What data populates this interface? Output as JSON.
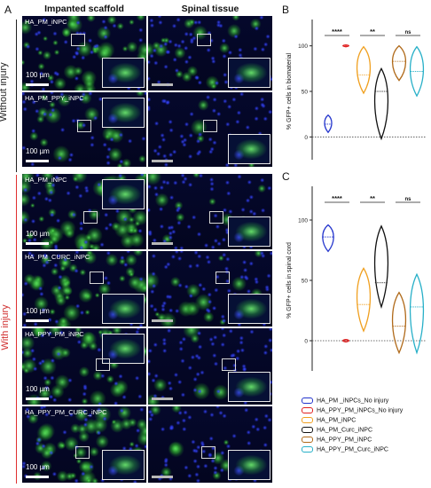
{
  "panel_letters": {
    "a": "A",
    "b": "B",
    "c": "C"
  },
  "columns": {
    "left": "Impanted scaffold",
    "right": "Spinal tissue"
  },
  "groups": {
    "top": "Without injury",
    "bottom": "With injury"
  },
  "scale_label": "100 µm",
  "rows": [
    {
      "label": "HA_PM_iNPC"
    },
    {
      "label": "HA_PM_PPY_iNPC"
    },
    {
      "label": "HA_PM_iNPC"
    },
    {
      "label": "HA_PM_CURC_iNPC"
    },
    {
      "label": "HA_PPY_PM_iNPC"
    },
    {
      "label": "HA_PPY_PM_CURC_iNPC"
    }
  ],
  "colors": {
    "blue": "#2233cc",
    "red": "#e02020",
    "orange": "#f0a020",
    "black": "#111111",
    "brown": "#b06a1a",
    "cyan": "#28b0c8"
  },
  "legend": [
    {
      "label": "HA_PM _iNPCs_No injury",
      "color": "#2233cc"
    },
    {
      "label": "HA_PPY_PM_iNPCs_No injury",
      "color": "#e02020"
    },
    {
      "label": "HA_PM_iNPC",
      "color": "#f0a020"
    },
    {
      "label": "HA_PM_Curc_iNPC",
      "color": "#111111"
    },
    {
      "label": "HA_PPY_PM_iNPC",
      "color": "#b06a1a"
    },
    {
      "label": "HA_PPY_PM_Curc_iNPC",
      "color": "#28b0c8"
    }
  ],
  "chart_data": [
    {
      "type": "violin",
      "ylabel": "% GFP+ cells in biomaterial",
      "ylim": [
        -25,
        125
      ],
      "yticks": [
        -50,
        0,
        50,
        100
      ],
      "reference_line": 0,
      "series": [
        {
          "color": "#2233cc",
          "median": 14,
          "range": [
            5,
            24
          ]
        },
        {
          "color": "#e02020",
          "median": 100,
          "range": [
            99,
            101
          ]
        },
        {
          "color": "#f0a020",
          "median": 68,
          "range": [
            48,
            99
          ]
        },
        {
          "color": "#111111",
          "median": 50,
          "range": [
            -2,
            75
          ]
        },
        {
          "color": "#b06a1a",
          "median": 83,
          "range": [
            62,
            100
          ]
        },
        {
          "color": "#28b0c8",
          "median": 72,
          "range": [
            45,
            99
          ]
        }
      ],
      "significance": [
        {
          "pair": [
            1,
            2
          ],
          "label": "****"
        },
        {
          "pair": [
            3,
            4
          ],
          "label": "**"
        },
        {
          "pair": [
            5,
            6
          ],
          "label": "ns"
        }
      ]
    },
    {
      "type": "violin",
      "ylabel": "% GFP+ cells in spinal cord",
      "ylim": [
        -25,
        125
      ],
      "yticks": [
        -50,
        0,
        50,
        100
      ],
      "reference_line": 0,
      "series": [
        {
          "color": "#2233cc",
          "median": 86,
          "range": [
            74,
            96
          ]
        },
        {
          "color": "#e02020",
          "median": 0,
          "range": [
            -1,
            1
          ]
        },
        {
          "color": "#f0a020",
          "median": 30,
          "range": [
            8,
            60
          ]
        },
        {
          "color": "#111111",
          "median": 48,
          "range": [
            28,
            95
          ]
        },
        {
          "color": "#b06a1a",
          "median": 12,
          "range": [
            -10,
            40
          ]
        },
        {
          "color": "#28b0c8",
          "median": 28,
          "range": [
            -10,
            55
          ]
        }
      ],
      "significance": [
        {
          "pair": [
            1,
            2
          ],
          "label": "****"
        },
        {
          "pair": [
            3,
            4
          ],
          "label": "**"
        },
        {
          "pair": [
            5,
            6
          ],
          "label": "ns"
        }
      ]
    }
  ]
}
